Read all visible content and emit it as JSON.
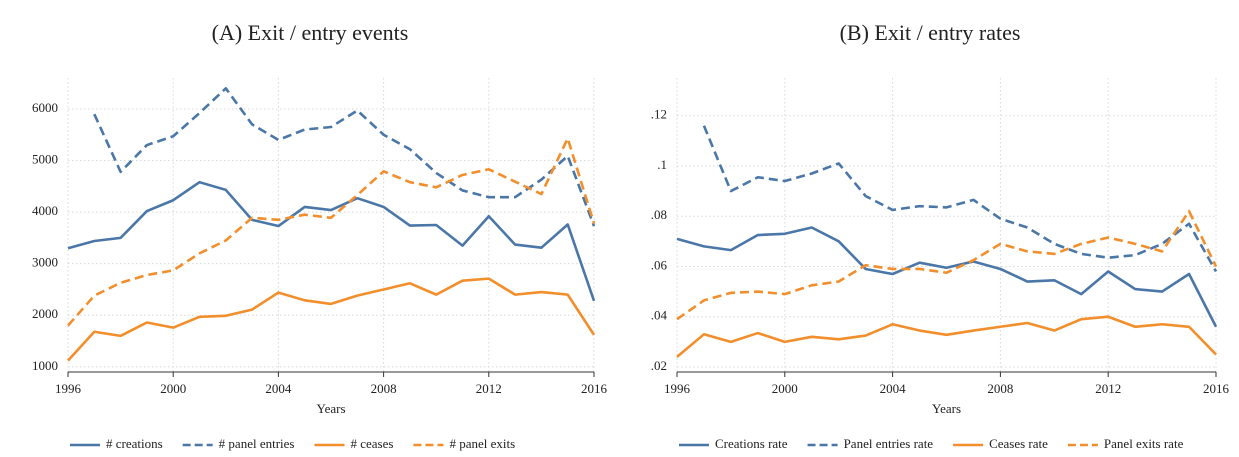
{
  "chart_data": [
    {
      "type": "line",
      "title": "(A) Exit / entry events",
      "x_label": "Years",
      "x": [
        1996,
        1997,
        1998,
        1999,
        2000,
        2001,
        2002,
        2003,
        2004,
        2005,
        2006,
        2007,
        2008,
        2009,
        2010,
        2011,
        2012,
        2013,
        2014,
        2015,
        2016
      ],
      "xlim": [
        1996,
        2016
      ],
      "xticks": [
        1996,
        2000,
        2004,
        2008,
        2012,
        2016
      ],
      "ylim": [
        900,
        6600
      ],
      "yticks": [
        1000,
        2000,
        3000,
        4000,
        5000,
        6000
      ],
      "grid": true,
      "series": [
        {
          "name": "# creations",
          "color": "#4a77a8",
          "dash": false,
          "values": [
            3300,
            3440,
            3500,
            4020,
            4230,
            4580,
            4430,
            3850,
            3730,
            4100,
            4040,
            4270,
            4100,
            3740,
            3750,
            3350,
            3920,
            3370,
            3310,
            3760,
            2280
          ]
        },
        {
          "name": "# panel entries",
          "color": "#4a77a8",
          "dash": true,
          "values": [
            null,
            5900,
            4780,
            5300,
            5470,
            5920,
            6400,
            5700,
            5400,
            5600,
            5650,
            5970,
            5500,
            5220,
            4760,
            4420,
            4290,
            4290,
            4630,
            5090,
            3730
          ]
        },
        {
          "name": "# ceases",
          "color": "#f28e2b",
          "dash": false,
          "values": [
            1120,
            1680,
            1600,
            1860,
            1760,
            1970,
            1990,
            2110,
            2440,
            2290,
            2220,
            2380,
            2500,
            2620,
            2400,
            2670,
            2710,
            2400,
            2450,
            2400,
            1620
          ]
        },
        {
          "name": "# panel exits",
          "color": "#f28e2b",
          "dash": true,
          "values": [
            1800,
            2380,
            2630,
            2780,
            2870,
            3200,
            3450,
            3890,
            3850,
            3950,
            3890,
            4330,
            4790,
            4580,
            4480,
            4720,
            4830,
            4590,
            4350,
            5430,
            3780
          ]
        }
      ]
    },
    {
      "type": "line",
      "title": "(B) Exit / entry rates",
      "x_label": "Years",
      "x": [
        1996,
        1997,
        1998,
        1999,
        2000,
        2001,
        2002,
        2003,
        2004,
        2005,
        2006,
        2007,
        2008,
        2009,
        2010,
        2011,
        2012,
        2013,
        2014,
        2015,
        2016
      ],
      "xlim": [
        1996,
        2016
      ],
      "xticks": [
        1996,
        2000,
        2004,
        2008,
        2012,
        2016
      ],
      "ylim": [
        0.018,
        0.135
      ],
      "yticks": [
        {
          "value": 0.02,
          "label": ".02"
        },
        {
          "value": 0.04,
          "label": ".04"
        },
        {
          "value": 0.06,
          "label": ".06"
        },
        {
          "value": 0.08,
          "label": ".08"
        },
        {
          "value": 0.1,
          "label": ".1"
        },
        {
          "value": 0.12,
          "label": ".12"
        }
      ],
      "grid": true,
      "series": [
        {
          "name": "Creations rate",
          "color": "#4a77a8",
          "dash": false,
          "values": [
            0.071,
            0.068,
            0.0665,
            0.0725,
            0.073,
            0.0755,
            0.07,
            0.059,
            0.057,
            0.0615,
            0.0595,
            0.062,
            0.059,
            0.054,
            0.0545,
            0.049,
            0.058,
            0.051,
            0.05,
            0.057,
            0.036
          ]
        },
        {
          "name": "Panel entries rate",
          "color": "#4a77a8",
          "dash": true,
          "values": [
            null,
            0.116,
            0.09,
            0.0955,
            0.094,
            0.097,
            0.101,
            0.088,
            0.0825,
            0.084,
            0.0835,
            0.0865,
            0.079,
            0.0755,
            0.069,
            0.065,
            0.0635,
            0.0645,
            0.069,
            0.077,
            0.058
          ]
        },
        {
          "name": "Ceases rate",
          "color": "#f28e2b",
          "dash": false,
          "values": [
            0.024,
            0.033,
            0.03,
            0.0335,
            0.03,
            0.032,
            0.031,
            0.0325,
            0.037,
            0.0345,
            0.0328,
            0.0345,
            0.036,
            0.0375,
            0.0345,
            0.039,
            0.04,
            0.036,
            0.037,
            0.036,
            0.025
          ]
        },
        {
          "name": "Panel exits rate",
          "color": "#f28e2b",
          "dash": true,
          "values": [
            0.039,
            0.0465,
            0.0495,
            0.05,
            0.049,
            0.0525,
            0.054,
            0.0605,
            0.059,
            0.059,
            0.0575,
            0.0625,
            0.069,
            0.066,
            0.065,
            0.069,
            0.0715,
            0.069,
            0.066,
            0.082,
            0.06
          ]
        }
      ]
    }
  ]
}
